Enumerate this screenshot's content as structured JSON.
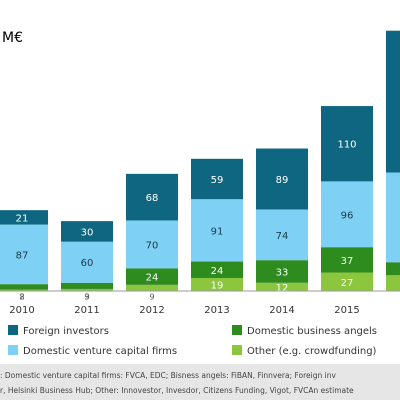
{
  "chart_data": {
    "type": "stacked-bar",
    "title": "M€",
    "categories": [
      "2010",
      "2011",
      "2012",
      "2013",
      "2014",
      "2015",
      null
    ],
    "series": [
      {
        "name": "Other (e.g. crowdfunding)",
        "color": "#8cc63f",
        "values": [
          2,
          3,
          9,
          19,
          12,
          27,
          23
        ]
      },
      {
        "name": "Domestic business angels",
        "color": "#2e8b1e",
        "values": [
          8,
          9,
          24,
          24,
          33,
          37,
          19
        ]
      },
      {
        "name": "Domestic venture capital firms",
        "color": "#7fd0f5",
        "values": [
          87,
          60,
          70,
          91,
          74,
          96,
          131
        ]
      },
      {
        "name": "Foreign investors",
        "color": "#0e6680",
        "values": [
          21,
          30,
          68,
          59,
          89,
          110,
          207
        ]
      }
    ],
    "ylim": [
      0,
      400
    ],
    "source": [
      ": Domestic venture capital firms: FVCA, EDC; Bisness angels: FiBAN, Finnvera; Foreign inv",
      "r, Helsinki Business Hub; Other: Innovestor, Invesdor, Citizens Funding, Vigot, FVCAn estimate"
    ]
  }
}
